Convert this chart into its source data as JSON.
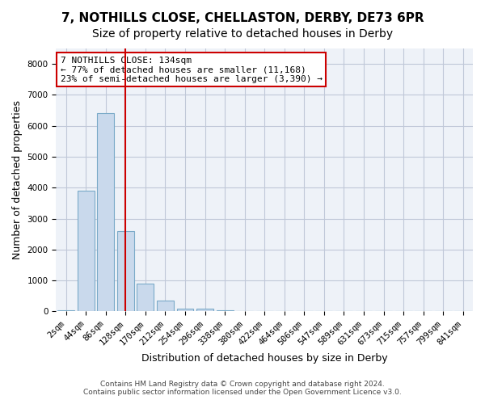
{
  "title_line1": "7, NOTHILLS CLOSE, CHELLASTON, DERBY, DE73 6PR",
  "title_line2": "Size of property relative to detached houses in Derby",
  "xlabel": "Distribution of detached houses by size in Derby",
  "ylabel": "Number of detached properties",
  "footer_line1": "Contains HM Land Registry data © Crown copyright and database right 2024.",
  "footer_line2": "Contains public sector information licensed under the Open Government Licence v3.0.",
  "bin_labels": [
    "2sqm",
    "44sqm",
    "86sqm",
    "128sqm",
    "170sqm",
    "212sqm",
    "254sqm",
    "296sqm",
    "338sqm",
    "380sqm",
    "422sqm",
    "464sqm",
    "506sqm",
    "547sqm",
    "589sqm",
    "631sqm",
    "673sqm",
    "715sqm",
    "757sqm",
    "799sqm",
    "841sqm"
  ],
  "bar_values": [
    25,
    3900,
    6400,
    2600,
    900,
    350,
    100,
    75,
    25,
    5,
    5,
    0,
    0,
    0,
    0,
    0,
    0,
    0,
    0,
    0,
    0
  ],
  "bar_color": "#c9d9ec",
  "bar_edge_color": "#7aaac8",
  "grid_color": "#c0c8d8",
  "background_color": "#eef2f8",
  "property_line_x": 3.0,
  "property_line_color": "#cc0000",
  "annotation_text": "7 NOTHILLS CLOSE: 134sqm\n← 77% of detached houses are smaller (11,168)\n23% of semi-detached houses are larger (3,390) →",
  "annotation_box_color": "#cc0000",
  "ylim": [
    0,
    8500
  ],
  "yticks": [
    0,
    1000,
    2000,
    3000,
    4000,
    5000,
    6000,
    7000,
    8000
  ],
  "title_fontsize": 11,
  "subtitle_fontsize": 10,
  "axis_label_fontsize": 9,
  "tick_fontsize": 7.5,
  "annotation_fontsize": 8
}
